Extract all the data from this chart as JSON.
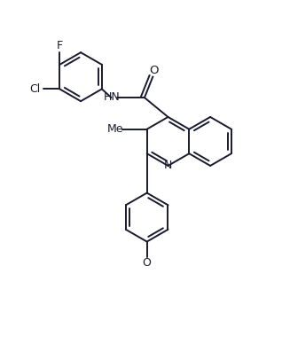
{
  "background_color": "#ffffff",
  "line_color": "#1a1a2e",
  "figsize": [
    3.18,
    3.97
  ],
  "dpi": 100,
  "xlim": [
    0,
    10
  ],
  "ylim": [
    0,
    12.5
  ]
}
